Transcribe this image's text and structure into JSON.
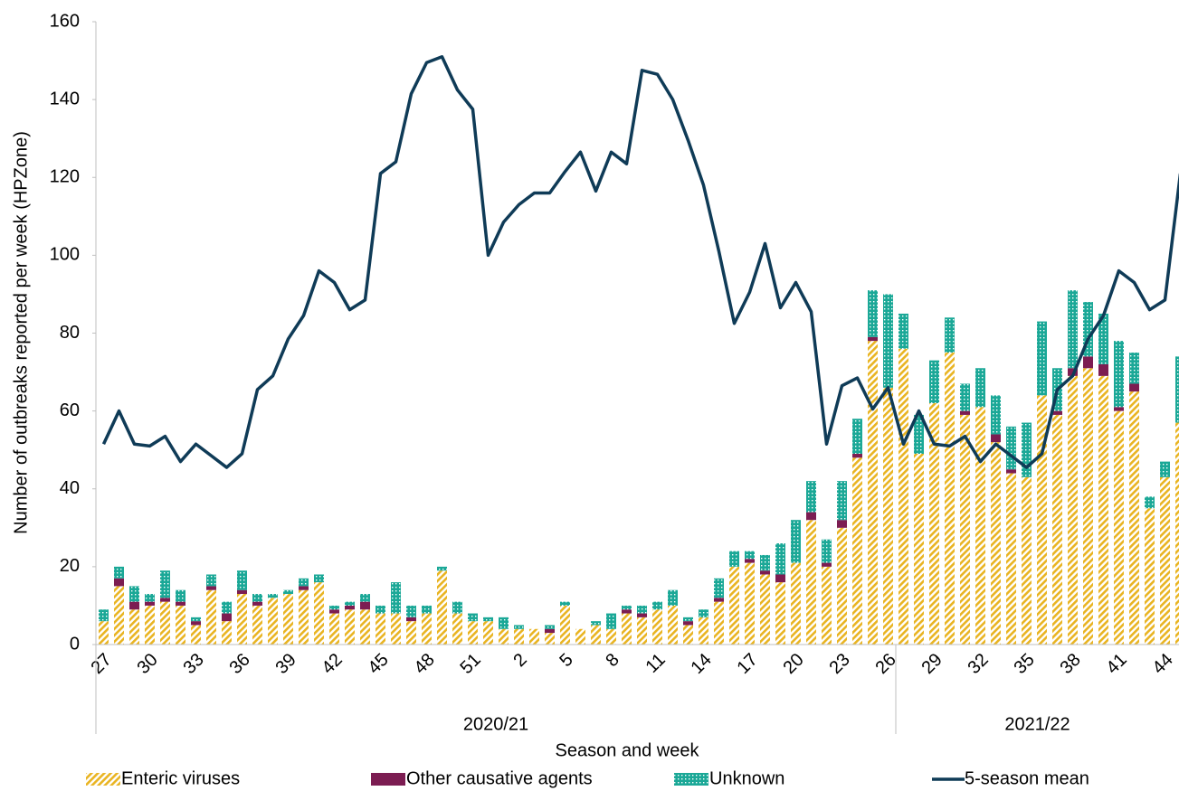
{
  "chart_data": {
    "type": "bar",
    "x_label": "Season and week",
    "y_label": "Number of outbreaks reported per week (HPZone)",
    "categories": [
      "27",
      null,
      null,
      "30",
      null,
      null,
      "33",
      null,
      null,
      "36",
      null,
      null,
      "39",
      null,
      null,
      "42",
      null,
      null,
      "45",
      null,
      null,
      "48",
      null,
      null,
      "51",
      null,
      null,
      "2",
      null,
      null,
      "5",
      null,
      null,
      "8",
      null,
      null,
      "11",
      null,
      null,
      "14",
      null,
      null,
      "17",
      null,
      null,
      "20",
      null,
      null,
      "23",
      null,
      null,
      "26",
      null,
      null,
      "29",
      null,
      null,
      "32",
      null,
      null,
      "35",
      null,
      null,
      "38",
      null,
      null,
      "41",
      null,
      null,
      "44",
      null
    ],
    "seasons": [
      "2020/21",
      "2020/21",
      "2020/21",
      "2020/21",
      "2020/21",
      "2020/21",
      "2020/21",
      "2020/21",
      "2020/21",
      "2020/21",
      "2020/21",
      "2020/21",
      "2020/21",
      "2020/21",
      "2020/21",
      "2020/21",
      "2020/21",
      "2020/21",
      "2020/21",
      "2020/21",
      "2020/21",
      "2020/21",
      "2020/21",
      "2020/21",
      "2020/21",
      "2020/21",
      "2020/21",
      "2020/21",
      "2020/21",
      "2020/21",
      "2020/21",
      "2020/21",
      "2020/21",
      "2020/21",
      "2020/21",
      "2020/21",
      "2020/21",
      "2020/21",
      "2020/21",
      "2020/21",
      "2020/21",
      "2020/21",
      "2020/21",
      "2020/21",
      "2020/21",
      "2020/21",
      "2020/21",
      "2020/21",
      "2020/21",
      "2020/21",
      "2020/21",
      "2020/21",
      "2021/22",
      "2021/22",
      "2021/22",
      "2021/22",
      "2021/22",
      "2021/22",
      "2021/22",
      "2021/22",
      "2021/22",
      "2021/22",
      "2021/22",
      "2021/22",
      "2021/22",
      "2021/22",
      "2021/22",
      "2021/22",
      "2021/22",
      "2021/22",
      "2021/22"
    ],
    "series": [
      {
        "name": "Enteric viruses",
        "type": "bar",
        "pattern": "diagonal",
        "color": "#e9b422",
        "values": [
          6,
          15,
          9,
          10,
          11,
          10,
          5,
          14,
          6,
          13,
          10,
          12,
          13,
          14,
          16,
          8,
          9,
          9,
          8,
          8,
          6,
          8,
          19,
          8,
          6,
          6,
          4,
          4,
          4,
          3,
          10,
          4,
          5,
          4,
          8,
          7,
          9,
          10,
          5,
          7,
          11,
          20,
          21,
          18,
          16,
          21,
          32,
          20,
          30,
          48,
          78,
          66,
          76,
          49,
          62,
          75,
          59,
          61,
          52,
          44,
          43,
          64,
          59,
          69,
          71,
          69,
          60,
          65,
          35,
          43,
          57
        ]
      },
      {
        "name": "Other causative agents",
        "type": "bar",
        "pattern": "solid",
        "color": "#7c1d52",
        "values": [
          0,
          2,
          2,
          1,
          1,
          1,
          1,
          1,
          2,
          1,
          1,
          0,
          0,
          1,
          0,
          1,
          1,
          2,
          0,
          0,
          1,
          0,
          0,
          0,
          0,
          0,
          0,
          0,
          0,
          1,
          0,
          0,
          0,
          0,
          1,
          1,
          0,
          0,
          1,
          0,
          1,
          0,
          1,
          1,
          2,
          0,
          2,
          1,
          2,
          1,
          1,
          0,
          0,
          0,
          0,
          0,
          1,
          0,
          2,
          1,
          0,
          0,
          1,
          2,
          3,
          3,
          1,
          2,
          0,
          0,
          0
        ]
      },
      {
        "name": "Unknown",
        "type": "bar",
        "pattern": "crosshatch",
        "color": "#1ba897",
        "values": [
          3,
          3,
          4,
          2,
          7,
          3,
          1,
          3,
          3,
          5,
          2,
          1,
          1,
          2,
          2,
          1,
          1,
          2,
          2,
          8,
          3,
          2,
          1,
          3,
          2,
          1,
          3,
          1,
          0,
          1,
          1,
          0,
          1,
          4,
          1,
          2,
          2,
          4,
          1,
          2,
          5,
          4,
          2,
          4,
          8,
          11,
          8,
          6,
          10,
          9,
          12,
          24,
          9,
          10,
          11,
          9,
          7,
          10,
          10,
          11,
          14,
          19,
          11,
          20,
          14,
          13,
          17,
          8,
          3,
          4,
          17
        ]
      },
      {
        "name": "5-season mean",
        "type": "line",
        "color": "#0f3b57",
        "values": [
          51.5,
          60,
          51.5,
          51,
          53.5,
          47,
          51.5,
          48.5,
          45.5,
          49,
          65.5,
          69,
          78.5,
          84.5,
          96,
          93,
          86,
          88.5,
          121,
          124,
          141.5,
          149.5,
          151,
          142.5,
          137.5,
          100,
          108.5,
          113,
          116,
          116,
          121.5,
          126.5,
          116.5,
          126.5,
          123.5,
          147.5,
          146.5,
          140,
          129.5,
          118,
          101,
          82.5,
          90.5,
          103,
          86.5,
          93,
          85.5,
          51.5,
          66.5,
          68.5,
          60.5,
          66,
          51.5,
          60,
          51.5,
          51,
          53.5,
          47,
          51.5,
          48.5,
          45.5,
          49,
          65.5,
          69,
          78.5,
          84.5,
          96,
          93,
          86,
          88.5,
          121
        ]
      }
    ],
    "ylim": [
      0,
      160
    ],
    "yticks": [
      0,
      20,
      40,
      60,
      80,
      100,
      120,
      140,
      160
    ],
    "grid": false,
    "legend": "bottom"
  }
}
